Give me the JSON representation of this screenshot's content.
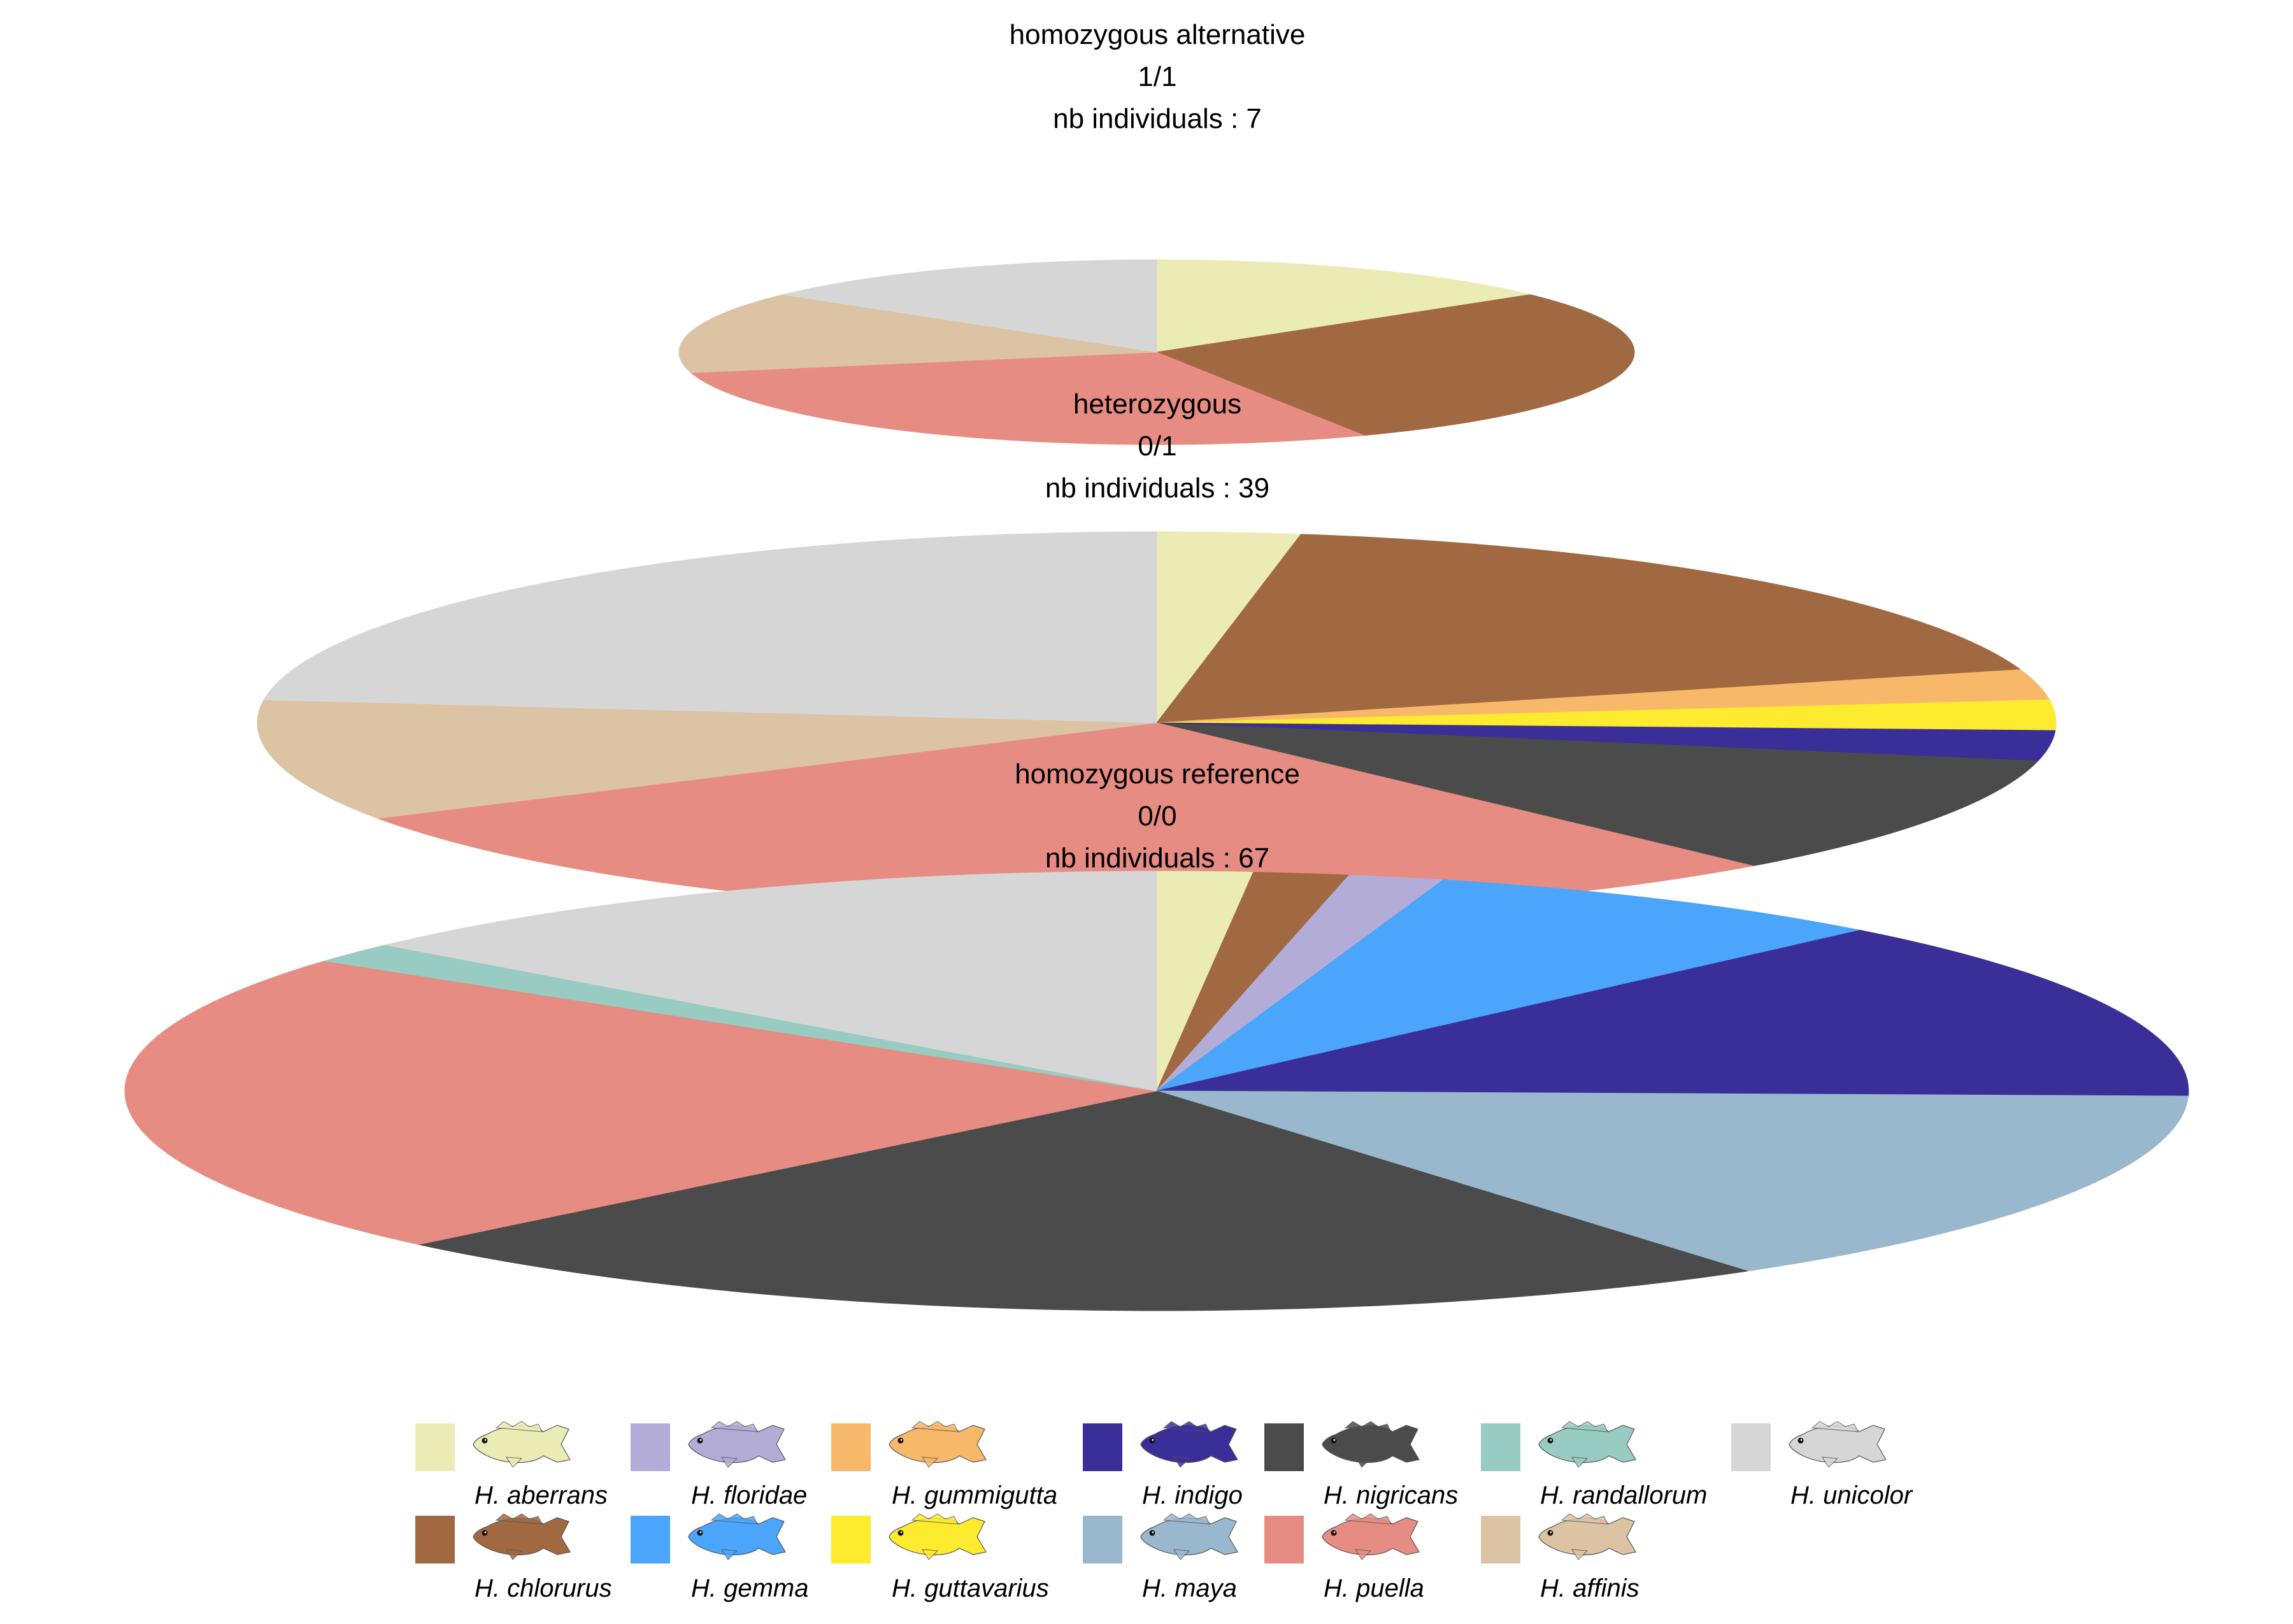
{
  "chart_data": [
    {
      "type": "pie",
      "title": [
        "homozygous alternative",
        "1/1",
        "nb individuals : 7"
      ],
      "total": 7,
      "slices": [
        {
          "label": "H. aberrans",
          "value": 1
        },
        {
          "label": "H. chlorurus",
          "value": 2
        },
        {
          "label": "H. puella",
          "value": 2
        },
        {
          "label": "H. affinis",
          "value": 1
        },
        {
          "label": "H. unicolor",
          "value": 1
        }
      ]
    },
    {
      "type": "pie",
      "title": [
        "heterozygous",
        "0/1",
        "nb individuals : 39"
      ],
      "total": 39,
      "slices": [
        {
          "label": "H. aberrans",
          "value": 1
        },
        {
          "label": "H. chlorurus",
          "value": 7
        },
        {
          "label": "H. gummigutta",
          "value": 1
        },
        {
          "label": "H. guttavarius",
          "value": 1
        },
        {
          "label": "H. indigo",
          "value": 1
        },
        {
          "label": "H. nigricans",
          "value": 4
        },
        {
          "label": "H. puella",
          "value": 11
        },
        {
          "label": "H. affinis",
          "value": 4
        },
        {
          "label": "H. unicolor",
          "value": 9
        }
      ]
    },
    {
      "type": "pie",
      "title": [
        "homozygous reference",
        "0/0",
        "nb individuals : 67"
      ],
      "total": 67,
      "slices": [
        {
          "label": "H. aberrans",
          "value": 1
        },
        {
          "label": "H. chlorurus",
          "value": 1
        },
        {
          "label": "H. floridae",
          "value": 1
        },
        {
          "label": "H. gemma",
          "value": 5
        },
        {
          "label": "H. indigo",
          "value": 9
        },
        {
          "label": "H. maya",
          "value": 10
        },
        {
          "label": "H. nigricans",
          "value": 15
        },
        {
          "label": "H. puella",
          "value": 15
        },
        {
          "label": "H. randallorum",
          "value": 1
        },
        {
          "label": "H. unicolor",
          "value": 9
        }
      ]
    }
  ],
  "legend": {
    "items": [
      {
        "label": "H. aberrans",
        "color": "#ebebb5"
      },
      {
        "label": "H. chlorurus",
        "color": "#a06941"
      },
      {
        "label": "H. floridae",
        "color": "#b3acd6"
      },
      {
        "label": "H. gemma",
        "color": "#4aa5fb"
      },
      {
        "label": "H. gummigutta",
        "color": "#f8b86a"
      },
      {
        "label": "H. guttavarius",
        "color": "#fdeb30"
      },
      {
        "label": "H. indigo",
        "color": "#3a2f98"
      },
      {
        "label": "H. maya",
        "color": "#99b7cd"
      },
      {
        "label": "H. nigricans",
        "color": "#4b4b4b"
      },
      {
        "label": "H. puella",
        "color": "#e68c83"
      },
      {
        "label": "H. randallorum",
        "color": "#98cbc1"
      },
      {
        "label": "H. affinis",
        "color": "#dbc3a4"
      },
      {
        "label": "H. unicolor",
        "color": "#d6d6d6"
      }
    ]
  }
}
